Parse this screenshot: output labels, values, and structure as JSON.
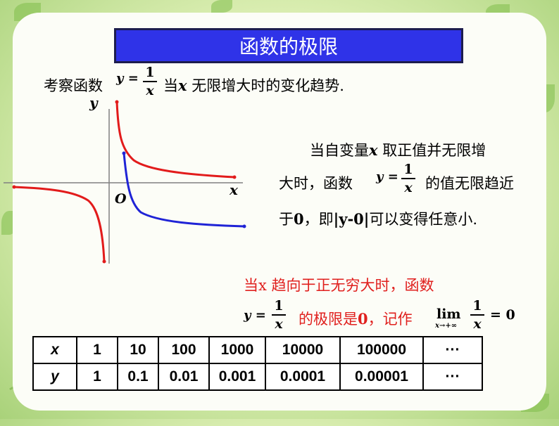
{
  "title": "函数的极限",
  "intro": {
    "prefix": "考察函数",
    "func_lhs": "y =",
    "func_num": "1",
    "func_den": "x",
    "mid": "当",
    "var": "x",
    "suffix": " 无限增大时的变化趋势."
  },
  "graph": {
    "y_label": "y",
    "x_label": "x",
    "origin_label": "O",
    "colors": {
      "axis": "#808080",
      "curve_red": "#e21b1b",
      "curve_blue": "#1f23d6"
    }
  },
  "explanation": {
    "line1_pre": "当自变量",
    "line1_var": "x",
    "line1_post": " 取正值并无限增",
    "line2_pre": "大时，函数",
    "func_lhs": "y =",
    "func_num": "1",
    "func_den": "x",
    "line2_post": "的值无限趋近",
    "line3_pre": "于",
    "line3_zero": "0",
    "line3_mid": "，即",
    "line3_abs": "|y-0|",
    "line3_post": "可以变得任意小."
  },
  "conclusion": {
    "line1": "当x 趋向于正无穷大时，函数",
    "func_lhs": "y =",
    "func_num": "1",
    "func_den": "x",
    "mid_pre": "的极限是",
    "mid_zero": "0",
    "mid_post": "，记作",
    "lim": "lim",
    "lim_sub": "x→+∞",
    "lim_num": "1",
    "lim_den": "x",
    "equals": "= 0"
  },
  "table": {
    "row_x": [
      "x",
      "1",
      "10",
      "100",
      "1000",
      "10000",
      "100000",
      "···"
    ],
    "row_y": [
      "y",
      "1",
      "0.1",
      "0.01",
      "0.001",
      "0.0001",
      "0.00001",
      "···"
    ]
  }
}
